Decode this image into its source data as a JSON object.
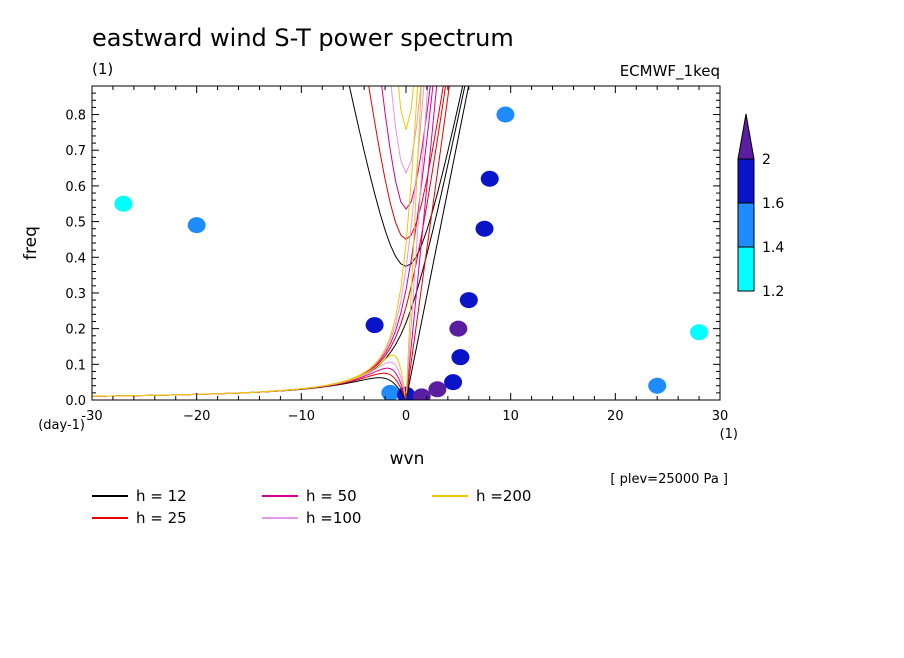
{
  "title": "eastward wind S-T power spectrum",
  "subtitle_left": "(1)",
  "subtitle_right": "ECMWF_1keq",
  "annotation": "[ plev=25000 Pa ]",
  "chart_data": {
    "type": "heatmap",
    "title": "eastward wind S-T power spectrum",
    "xlabel": "wvn",
    "ylabel": "freq",
    "x_unit": "(1)",
    "y_unit": "(day-1)",
    "xlim": [
      -30,
      30
    ],
    "ylim": [
      0,
      0.88
    ],
    "xticks": [
      -30,
      -20,
      -10,
      0,
      10,
      20,
      30
    ],
    "xtick_labels": [
      "-30",
      "−20",
      "−10",
      "0",
      "10",
      "20",
      "30"
    ],
    "yticks": [
      0,
      0.1,
      0.2,
      0.3,
      0.4,
      0.5,
      0.6,
      0.7,
      0.8
    ],
    "ytick_labels": [
      "0.0",
      "0.1",
      "0.2",
      "0.3",
      "0.4",
      "0.5",
      "0.6",
      "0.7",
      "0.8"
    ],
    "colorbar": {
      "levels": [
        1.2,
        1.4,
        1.6,
        2
      ],
      "labels": [
        "1.2",
        "1.4",
        "1.6",
        "2"
      ],
      "colors": [
        "#00ffff",
        "#1e8cff",
        "#0a14c8",
        "#5a1ea0"
      ]
    },
    "dispersion_curves": [
      {
        "label": "h = 12",
        "h": 12,
        "color": "#000000"
      },
      {
        "label": "h = 25",
        "h": 25,
        "color": "#e60000"
      },
      {
        "label": "h = 50",
        "h": 50,
        "color": "#d20096"
      },
      {
        "label": "h =100",
        "h": 100,
        "color": "#e696e6"
      },
      {
        "label": "h =200",
        "h": 200,
        "color": "#f0c800"
      }
    ],
    "power_blobs": [
      {
        "x": 0.5,
        "y": 0.005,
        "level": 1.2
      },
      {
        "x": -1.5,
        "y": 0.02,
        "level": 1.4
      },
      {
        "x": 0.0,
        "y": 0.015,
        "level": 1.6
      },
      {
        "x": 1.5,
        "y": 0.01,
        "level": 2
      },
      {
        "x": 3.0,
        "y": 0.03,
        "level": 2
      },
      {
        "x": 4.5,
        "y": 0.05,
        "level": 1.6
      },
      {
        "x": 5.2,
        "y": 0.12,
        "level": 1.6
      },
      {
        "x": 5.0,
        "y": 0.2,
        "level": 2
      },
      {
        "x": 6.0,
        "y": 0.28,
        "level": 1.6
      },
      {
        "x": 7.5,
        "y": 0.48,
        "level": 1.6
      },
      {
        "x": 8.0,
        "y": 0.62,
        "level": 1.6
      },
      {
        "x": 9.5,
        "y": 0.8,
        "level": 1.4
      },
      {
        "x": -3.0,
        "y": 0.21,
        "level": 1.6
      },
      {
        "x": -20.0,
        "y": 0.49,
        "level": 1.4
      },
      {
        "x": -27.0,
        "y": 0.55,
        "level": 1.2
      },
      {
        "x": 24.0,
        "y": 0.04,
        "level": 1.4
      },
      {
        "x": 28.0,
        "y": 0.19,
        "level": 1.2
      }
    ]
  },
  "legend": [
    {
      "label": "h = 12",
      "color": "#000000"
    },
    {
      "label": "h = 25",
      "color": "#e60000"
    },
    {
      "label": "h = 50",
      "color": "#d20096"
    },
    {
      "label": "h =100",
      "color": "#e696e6"
    },
    {
      "label": "h =200",
      "color": "#f0c800"
    }
  ]
}
